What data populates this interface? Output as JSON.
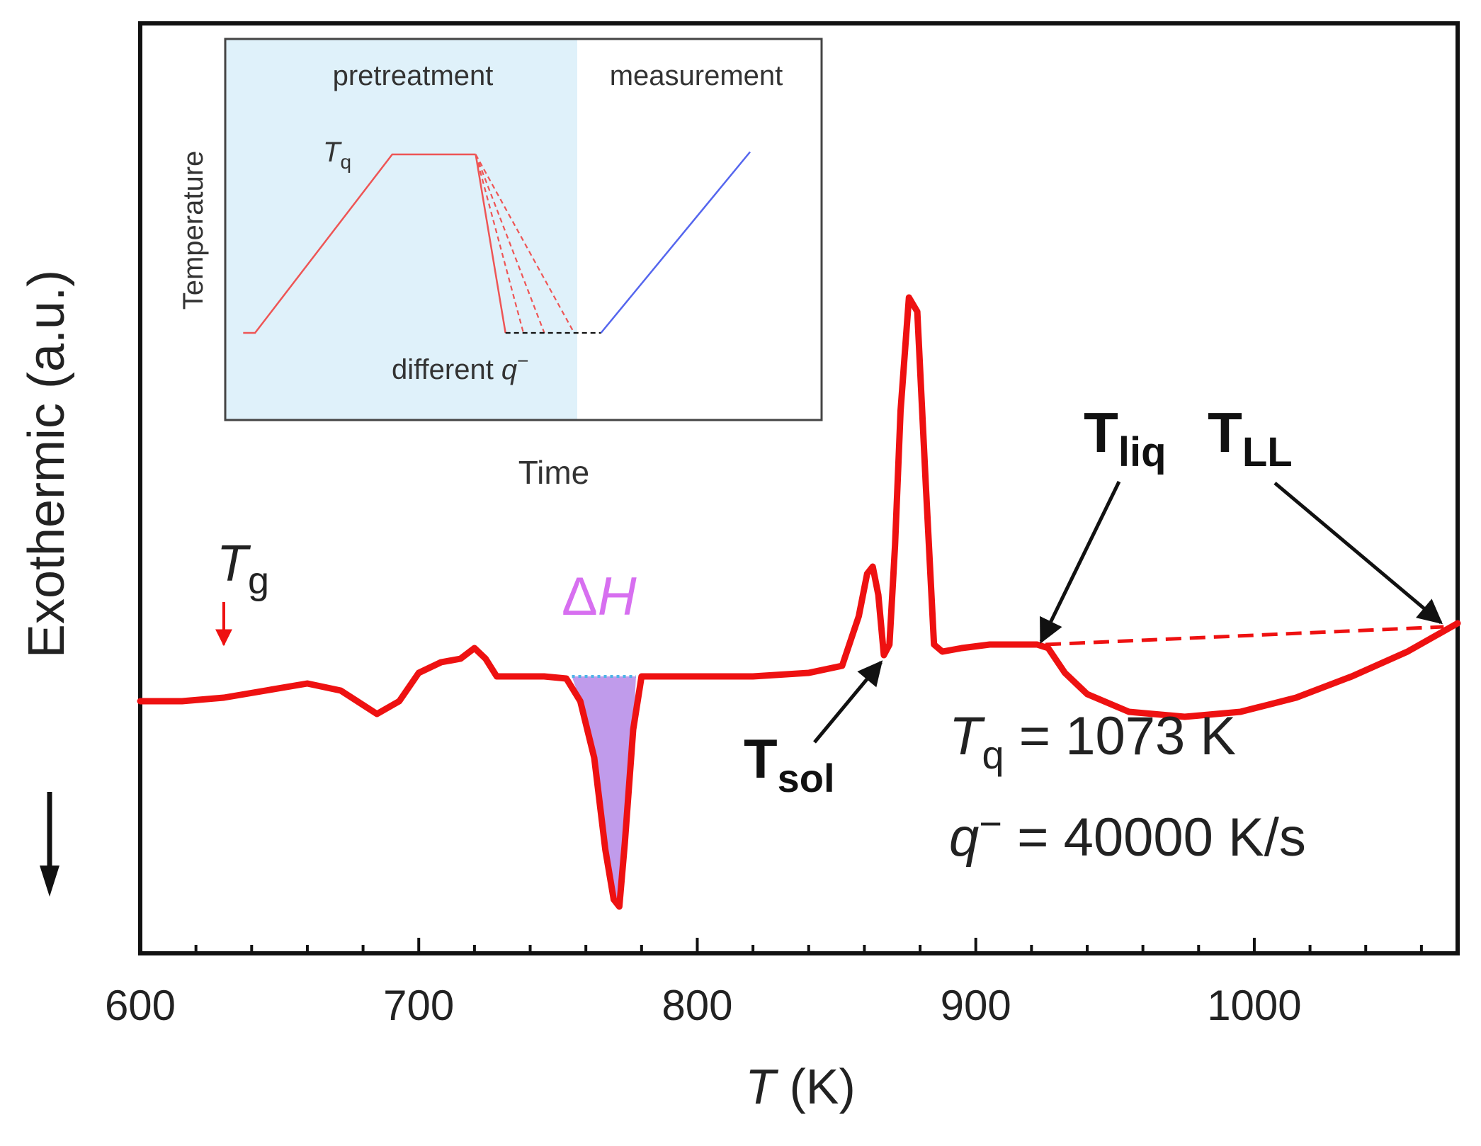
{
  "colors": {
    "curve": "#ee1111",
    "inset_cool": "#ee5555",
    "inset_heat": "#5566ee",
    "delta_h_text": "#d76ff0",
    "delta_h_fill": "#b58ae8",
    "inset_bg": "#dff1fa",
    "baseline_dotted": "#4fb3e8",
    "axis": "#111111"
  },
  "chart_data": [
    {
      "id": "main",
      "type": "line",
      "xlabel_var": "T",
      "xlabel_unit": " (K)",
      "ylabel": "Exothermic (a.u.)",
      "yunits": "arbitrary (exothermic up)",
      "xlim": [
        600,
        1073
      ],
      "ylim": [
        0,
        100
      ],
      "x_ticks": [
        600,
        700,
        800,
        900,
        1000
      ],
      "x_ticks_labels": [
        "600",
        "700",
        "800",
        "900",
        "1000"
      ],
      "x_minor_step": 20,
      "series": [
        {
          "name": "DSC heating curve",
          "x": [
            600,
            615,
            630,
            645,
            660,
            672,
            685,
            693,
            700,
            708,
            715,
            720,
            724,
            728,
            735,
            745,
            753,
            758,
            763,
            767,
            770,
            772,
            774,
            777,
            780,
            785,
            800,
            820,
            840,
            852,
            858,
            861,
            863,
            865,
            867,
            869,
            871,
            873,
            876,
            879,
            882,
            885,
            888,
            895,
            905,
            915,
            922,
            926,
            932,
            940,
            955,
            975,
            995,
            1015,
            1035,
            1055,
            1073
          ],
          "y": [
            34,
            34,
            34.5,
            35.5,
            36.5,
            35.5,
            32.2,
            34,
            38,
            39.5,
            40,
            41.5,
            40,
            37.5,
            37.5,
            37.5,
            37.2,
            34,
            26,
            13,
            6,
            5,
            14,
            30,
            37.5,
            37.5,
            37.5,
            37.5,
            38,
            39,
            46,
            52,
            53,
            49,
            40.5,
            42,
            56,
            75,
            91,
            89,
            65,
            42,
            41,
            41.5,
            42,
            42,
            42,
            41.5,
            38,
            35,
            32.5,
            31.8,
            32.5,
            34.5,
            37.5,
            41,
            45
          ]
        }
      ],
      "delta_h": {
        "x_start": 755,
        "x_end": 778,
        "baseline_y": 37.5
      },
      "dashed_baseline": {
        "x": [
          925,
          1068
        ],
        "y": [
          42,
          44.5
        ]
      },
      "annotations": {
        "tg": {
          "main": "T",
          "sub": "g",
          "x": 630
        },
        "delta_h": {
          "delta": "Δ",
          "h": "H"
        },
        "t_sol": {
          "main": "T",
          "sub": "sol",
          "target_x": 867
        },
        "t_liq": {
          "main": "T",
          "sub": "liq",
          "target_x": 925
        },
        "t_ll": {
          "main": "T",
          "sub": "LL",
          "target_x": 1068
        },
        "tq_line": {
          "main": "T",
          "sub": "q",
          "rest": " = 1073 K"
        },
        "q_line": {
          "main": "q",
          "sup": "−",
          "rest": " = 40000 K/s"
        },
        "down_arrow": "exothermic direction"
      }
    },
    {
      "id": "inset",
      "type": "line",
      "title_left": "pretreatment",
      "title_right": "measurement",
      "xlabel": "Time",
      "ylabel": "Temperature",
      "xlim": [
        0,
        100
      ],
      "ylim": [
        0,
        100
      ],
      "tq_label": {
        "main": "T",
        "sub": "q"
      },
      "q_label": {
        "text": "different ",
        "q": "q",
        "sup": "−"
      },
      "series": [
        {
          "name": "heating to Tq",
          "style": "solid",
          "color_key": "inset_cool",
          "x": [
            3,
            5,
            28,
            42
          ],
          "y": [
            0,
            0,
            72,
            72
          ]
        },
        {
          "name": "fast quench",
          "style": "solid",
          "color_key": "inset_cool",
          "x": [
            42,
            47
          ],
          "y": [
            72,
            0
          ]
        },
        {
          "name": "medium quench",
          "style": "dashed",
          "color_key": "inset_cool",
          "x": [
            42,
            50
          ],
          "y": [
            72,
            0
          ]
        },
        {
          "name": "slower quench",
          "style": "dashed",
          "color_key": "inset_cool",
          "x": [
            42,
            53.5
          ],
          "y": [
            72,
            0
          ]
        },
        {
          "name": "slowest quench",
          "style": "dashed",
          "color_key": "inset_cool",
          "x": [
            42,
            58.5
          ],
          "y": [
            72,
            0
          ]
        },
        {
          "name": "hold",
          "style": "dashed",
          "color_key": "axis",
          "x": [
            47,
            63
          ],
          "y": [
            0,
            0
          ]
        },
        {
          "name": "measurement heating",
          "style": "solid",
          "color_key": "inset_heat",
          "x": [
            63,
            88
          ],
          "y": [
            0,
            73
          ]
        }
      ]
    }
  ]
}
